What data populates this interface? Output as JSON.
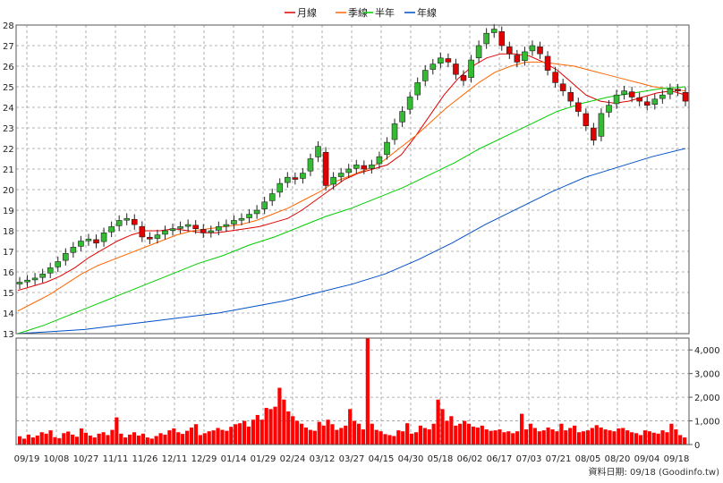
{
  "chart_data": [
    {
      "type": "candlestick",
      "title": "",
      "legend": {
        "placement": "top-center",
        "entries": [
          {
            "name": "月線",
            "color": "#e00000"
          },
          {
            "name": "季線",
            "color": "#ff6600"
          },
          {
            "name": "半年",
            "color": "#00cc00"
          },
          {
            "name": "年線",
            "color": "#0050c8"
          }
        ]
      },
      "y_axis": {
        "side": "left",
        "range": [
          13,
          28
        ],
        "ticks": [
          "13",
          "14",
          "15",
          "16",
          "17",
          "18",
          "19",
          "20",
          "21",
          "22",
          "23",
          "24",
          "25",
          "26",
          "27",
          "28"
        ]
      },
      "grid": true,
      "up_color": "#33bb33",
      "down_color": "#e00000",
      "close": [
        15.5,
        15.6,
        15.7,
        15.9,
        16.2,
        16.5,
        16.9,
        17.2,
        17.5,
        17.6,
        17.4,
        17.9,
        18.2,
        18.5,
        18.6,
        18.3,
        17.7,
        17.6,
        17.8,
        18.0,
        18.1,
        18.2,
        18.3,
        18.1,
        17.9,
        18.0,
        18.2,
        18.3,
        18.5,
        18.6,
        18.8,
        19.0,
        19.4,
        19.8,
        20.3,
        20.6,
        20.5,
        20.8,
        21.5,
        22.1,
        20.2,
        20.6,
        20.8,
        21.0,
        21.2,
        21.0,
        21.2,
        21.6,
        22.3,
        23.2,
        23.8,
        24.5,
        25.2,
        25.8,
        26.1,
        26.4,
        26.2,
        25.6,
        25.3,
        26.3,
        27.0,
        27.6,
        27.8,
        27.0,
        26.6,
        26.2,
        26.7,
        27.0,
        26.6,
        25.8,
        25.2,
        24.8,
        24.3,
        23.8,
        23.1,
        22.4,
        23.7,
        24.1,
        24.6,
        24.8,
        24.5,
        24.3,
        24.1,
        24.4,
        24.6,
        24.9,
        24.8,
        24.3
      ],
      "series": [
        {
          "name": "月線",
          "values": [
            15.1,
            15.3,
            15.5,
            15.8,
            16.2,
            16.7,
            17.1,
            17.5,
            17.8,
            18.0,
            18.0,
            18.1,
            18.0,
            17.9,
            17.9,
            18.0,
            18.1,
            18.2,
            18.4,
            18.6,
            19.0,
            19.5,
            20.0,
            20.5,
            20.8,
            21.0,
            21.2,
            21.7,
            22.6,
            23.6,
            24.6,
            25.4,
            26.0,
            26.4,
            26.6,
            26.6,
            26.5,
            26.2,
            25.8,
            25.2,
            24.6,
            24.3,
            24.2,
            24.3,
            24.5,
            24.7,
            24.8,
            24.6
          ]
        },
        {
          "name": "季線",
          "values": [
            14.1,
            14.5,
            14.9,
            15.4,
            15.9,
            16.3,
            16.6,
            16.9,
            17.2,
            17.5,
            17.8,
            18.0,
            18.1,
            18.2,
            18.3,
            18.5,
            18.8,
            19.1,
            19.5,
            19.9,
            20.4,
            20.7,
            21.0,
            21.4,
            22.0,
            22.6,
            23.3,
            24.0,
            24.6,
            25.2,
            25.7,
            26.0,
            26.2,
            26.2,
            26.1,
            26.0,
            25.8,
            25.6,
            25.4,
            25.2,
            25.0,
            24.9,
            24.8
          ]
        },
        {
          "name": "半年",
          "values": [
            13.0,
            13.4,
            13.9,
            14.4,
            14.9,
            15.4,
            15.9,
            16.4,
            16.8,
            17.3,
            17.7,
            18.2,
            18.7,
            19.1,
            19.6,
            20.1,
            20.7,
            21.3,
            22.0,
            22.6,
            23.2,
            23.8,
            24.2,
            24.5,
            24.7,
            24.9,
            25.0
          ]
        },
        {
          "name": "年線",
          "values": [
            13.0,
            13.1,
            13.2,
            13.4,
            13.6,
            13.8,
            14.0,
            14.3,
            14.6,
            15.0,
            15.4,
            15.9,
            16.6,
            17.4,
            18.3,
            19.1,
            19.9,
            20.6,
            21.1,
            21.6,
            22.0
          ]
        }
      ]
    },
    {
      "type": "bar",
      "y_axis": {
        "side": "right",
        "range": [
          0,
          4500
        ],
        "ticks": [
          "0",
          "1,000",
          "2,000",
          "3,000",
          "4,000"
        ]
      },
      "bar_color": "#ff0000",
      "values": [
        350,
        250,
        420,
        300,
        380,
        520,
        460,
        600,
        310,
        270,
        480,
        550,
        420,
        330,
        680,
        500,
        380,
        300,
        460,
        520,
        400,
        620,
        1150,
        460,
        300,
        420,
        520,
        380,
        460,
        300,
        250,
        360,
        480,
        420,
        600,
        680,
        520,
        450,
        580,
        720,
        860,
        400,
        480,
        560,
        600,
        700,
        620,
        580,
        750,
        860,
        900,
        1000,
        760,
        1050,
        1250,
        1050,
        1550,
        1500,
        1600,
        2400,
        1900,
        1400,
        1200,
        1000,
        880,
        720,
        620,
        580,
        960,
        800,
        1050,
        860,
        620,
        700,
        800,
        1500,
        1000,
        880,
        640,
        4700,
        880,
        620,
        560,
        440,
        400,
        360,
        600,
        560,
        900,
        460,
        520,
        800,
        700,
        640,
        880,
        1900,
        1500,
        1000,
        1200,
        800,
        880,
        1000,
        880,
        760,
        720,
        800,
        640,
        580,
        600,
        640,
        520,
        560,
        480,
        560,
        1300,
        640,
        880,
        700,
        560,
        600,
        720,
        640,
        560,
        880,
        600,
        700,
        800,
        520,
        560,
        600,
        700,
        820,
        720,
        640,
        600,
        560,
        680,
        700,
        600,
        520,
        480,
        400,
        600,
        560,
        500,
        460,
        600,
        520,
        880,
        640,
        400,
        300
      ]
    }
  ],
  "x_axis": {
    "ticks": [
      "09/19",
      "10/08",
      "10/27",
      "11/11",
      "11/26",
      "12/11",
      "12/29",
      "01/14",
      "01/29",
      "02/24",
      "03/12",
      "03/27",
      "04/15",
      "04/30",
      "05/18",
      "06/02",
      "06/17",
      "07/03",
      "07/21",
      "08/05",
      "08/20",
      "09/04",
      "09/18"
    ]
  },
  "footer": {
    "source": "資料日期: 09/18  (Goodinfo.tw)"
  }
}
